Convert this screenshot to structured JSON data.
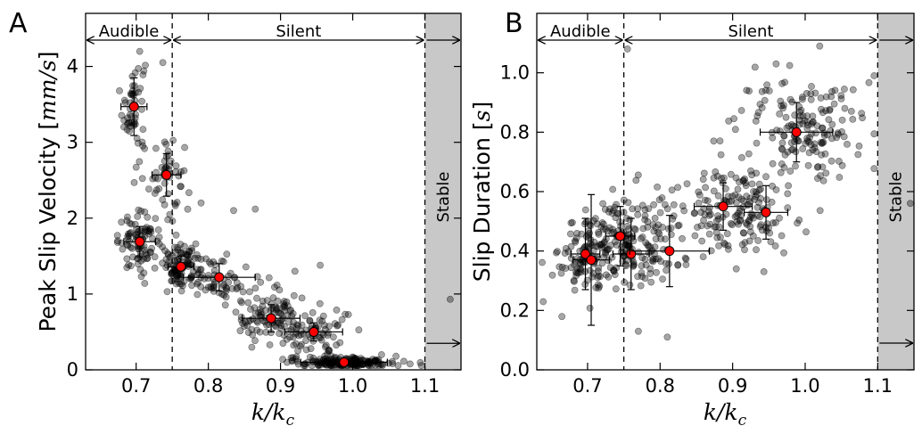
{
  "chart_data": [
    {
      "type": "scatter",
      "panel_label": "A",
      "ylabel": "Peak Slip Velocity [mm/s]",
      "ylabel_plain": "Peak Slip Velocity [",
      "ylabel_math": "mm/s",
      "ylabel_close": "]",
      "xlabel_main": "k/k",
      "xlabel_sub": "c",
      "xlim": [
        0.63,
        1.15
      ],
      "ylim": [
        0,
        4.7
      ],
      "xticks": [
        0.7,
        0.8,
        0.9,
        1.0,
        1.1
      ],
      "xtick_labels": [
        "0.7",
        "0.8",
        "0.9",
        "1.0",
        "1.1"
      ],
      "yticks": [
        0,
        1,
        2,
        3,
        4
      ],
      "ytick_labels": [
        "0",
        "1",
        "2",
        "3",
        "4"
      ],
      "regions": [
        {
          "label": "Audible",
          "x0": 0.63,
          "x1": 0.75
        },
        {
          "label": "Silent",
          "x0": 0.75,
          "x1": 1.1
        },
        {
          "label": "Stable",
          "x0": 1.1,
          "x1": 1.15,
          "shaded": true
        }
      ],
      "stable_arrow_y": 0.35,
      "clusters": [
        {
          "x": 0.697,
          "y": 3.47,
          "sx": 0.008,
          "sy": 0.35,
          "n": 55
        },
        {
          "x": 0.742,
          "y": 2.57,
          "sx": 0.012,
          "sy": 0.28,
          "n": 50
        },
        {
          "x": 0.705,
          "y": 1.69,
          "sx": 0.015,
          "sy": 0.18,
          "n": 90
        },
        {
          "x": 0.762,
          "y": 1.36,
          "sx": 0.012,
          "sy": 0.14,
          "n": 90
        },
        {
          "x": 0.815,
          "y": 1.22,
          "sx": 0.025,
          "sy": 0.15,
          "n": 70
        },
        {
          "x": 0.887,
          "y": 0.68,
          "sx": 0.025,
          "sy": 0.17,
          "n": 100
        },
        {
          "x": 0.946,
          "y": 0.5,
          "sx": 0.025,
          "sy": 0.17,
          "n": 70
        },
        {
          "x": 0.988,
          "y": 0.1,
          "sx": 0.04,
          "sy": 0.04,
          "n": 170
        }
      ],
      "extra_points": [
        [
          1.135,
          0.93
        ],
        [
          0.705,
          4.2
        ],
        [
          0.737,
          4.05
        ],
        [
          0.79,
          2.2
        ],
        [
          0.835,
          2.1
        ],
        [
          0.865,
          2.12
        ],
        [
          0.845,
          1.1
        ],
        [
          0.92,
          1.3
        ],
        [
          0.955,
          1.38
        ],
        [
          1.04,
          0.2
        ],
        [
          1.06,
          0.18
        ]
      ],
      "means": [
        {
          "x": 0.697,
          "y": 3.47,
          "xerr": 0.018,
          "yerr": 0.38
        },
        {
          "x": 0.742,
          "y": 2.57,
          "xerr": 0.02,
          "yerr": 0.28
        },
        {
          "x": 0.705,
          "y": 1.69,
          "xerr": 0.022,
          "yerr": 0.2
        },
        {
          "x": 0.762,
          "y": 1.36,
          "xerr": 0.018,
          "yerr": 0.14
        },
        {
          "x": 0.815,
          "y": 1.22,
          "xerr": 0.05,
          "yerr": 0.18
        },
        {
          "x": 0.887,
          "y": 0.68,
          "xerr": 0.04,
          "yerr": 0.18
        },
        {
          "x": 0.946,
          "y": 0.5,
          "xerr": 0.04,
          "yerr": 0.12
        },
        {
          "x": 0.988,
          "y": 0.1,
          "xerr": 0.06,
          "yerr": 0.04
        }
      ],
      "point_color": "#000000",
      "mean_color": "#ff0000"
    },
    {
      "type": "scatter",
      "panel_label": "B",
      "ylabel": "Slip Duration [s]",
      "ylabel_plain": "Slip Duration [",
      "ylabel_math": "s",
      "ylabel_close": "]",
      "xlabel_main": "k/k",
      "xlabel_sub": "c",
      "xlim": [
        0.63,
        1.15
      ],
      "ylim": [
        0,
        1.2
      ],
      "xticks": [
        0.7,
        0.8,
        0.9,
        1.0,
        1.1
      ],
      "xtick_labels": [
        "0.7",
        "0.8",
        "0.9",
        "1.0",
        "1.1"
      ],
      "yticks": [
        0,
        0.2,
        0.4,
        0.6,
        0.8,
        1.0
      ],
      "ytick_labels": [
        "0.0",
        "0.2",
        "0.4",
        "0.6",
        "0.8",
        "1.0"
      ],
      "regions": [
        {
          "label": "Audible",
          "x0": 0.63,
          "x1": 0.75
        },
        {
          "label": "Silent",
          "x0": 0.75,
          "x1": 1.1
        },
        {
          "label": "Stable",
          "x0": 1.1,
          "x1": 1.15,
          "shaded": true
        }
      ],
      "stable_arrow_y": 0.09,
      "clusters": [
        {
          "x": 0.697,
          "y": 0.39,
          "sx": 0.018,
          "sy": 0.07,
          "n": 110
        },
        {
          "x": 0.745,
          "y": 0.44,
          "sx": 0.02,
          "sy": 0.08,
          "n": 110
        },
        {
          "x": 0.79,
          "y": 0.42,
          "sx": 0.03,
          "sy": 0.08,
          "n": 70
        },
        {
          "x": 0.89,
          "y": 0.55,
          "sx": 0.035,
          "sy": 0.07,
          "n": 120
        },
        {
          "x": 0.93,
          "y": 0.52,
          "sx": 0.03,
          "sy": 0.06,
          "n": 50
        },
        {
          "x": 0.99,
          "y": 0.8,
          "sx": 0.045,
          "sy": 0.09,
          "n": 170
        }
      ],
      "extra_points": [
        [
          0.755,
          1.08
        ],
        [
          0.81,
          0.11
        ],
        [
          1.145,
          0.56
        ],
        [
          0.77,
          0.13
        ],
        [
          0.96,
          1.03
        ],
        [
          1.02,
          1.09
        ],
        [
          0.905,
          0.34
        ]
      ],
      "means": [
        {
          "x": 0.697,
          "y": 0.39,
          "xerr": 0.02,
          "yerr": 0.12
        },
        {
          "x": 0.705,
          "y": 0.37,
          "xerr": 0.025,
          "yerr": 0.22
        },
        {
          "x": 0.745,
          "y": 0.45,
          "xerr": 0.02,
          "yerr": 0.1
        },
        {
          "x": 0.76,
          "y": 0.39,
          "xerr": 0.025,
          "yerr": 0.12
        },
        {
          "x": 0.813,
          "y": 0.4,
          "xerr": 0.055,
          "yerr": 0.12
        },
        {
          "x": 0.887,
          "y": 0.55,
          "xerr": 0.04,
          "yerr": 0.08
        },
        {
          "x": 0.946,
          "y": 0.53,
          "xerr": 0.03,
          "yerr": 0.09
        },
        {
          "x": 0.988,
          "y": 0.8,
          "xerr": 0.05,
          "yerr": 0.1
        }
      ],
      "point_color": "#000000",
      "mean_color": "#ff0000"
    }
  ]
}
